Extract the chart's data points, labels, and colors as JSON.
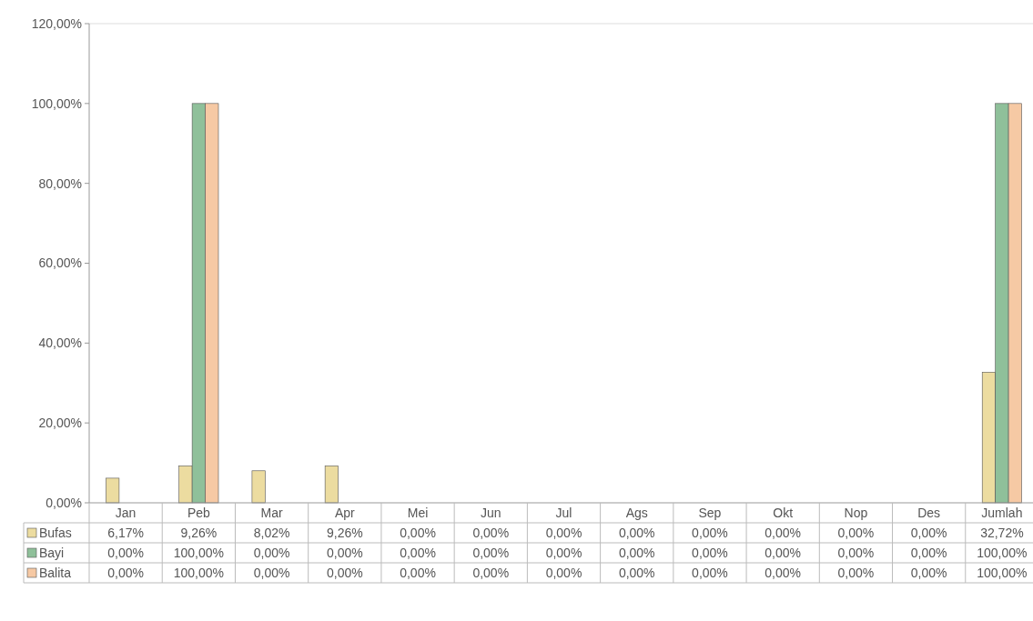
{
  "chart_data": {
    "type": "bar",
    "categories": [
      "Jan",
      "Peb",
      "Mar",
      "Apr",
      "Mei",
      "Jun",
      "Jul",
      "Ags",
      "Sep",
      "Okt",
      "Nop",
      "Des",
      "Jumlah"
    ],
    "series": [
      {
        "name": "Bufas",
        "color": "#ecdca0",
        "values": [
          6.17,
          9.26,
          8.02,
          9.26,
          0,
          0,
          0,
          0,
          0,
          0,
          0,
          0,
          32.72
        ],
        "value_labels": [
          "6,17%",
          "9,26%",
          "8,02%",
          "9,26%",
          "0,00%",
          "0,00%",
          "0,00%",
          "0,00%",
          "0,00%",
          "0,00%",
          "0,00%",
          "0,00%",
          "32,72%"
        ]
      },
      {
        "name": "Bayi",
        "color": "#8fc09a",
        "values": [
          0,
          100,
          0,
          0,
          0,
          0,
          0,
          0,
          0,
          0,
          0,
          0,
          100
        ],
        "value_labels": [
          "0,00%",
          "100,00%",
          "0,00%",
          "0,00%",
          "0,00%",
          "0,00%",
          "0,00%",
          "0,00%",
          "0,00%",
          "0,00%",
          "0,00%",
          "0,00%",
          "100,00%"
        ]
      },
      {
        "name": "Balita",
        "color": "#f6c9a4",
        "values": [
          0,
          100,
          0,
          0,
          0,
          0,
          0,
          0,
          0,
          0,
          0,
          0,
          100
        ],
        "value_labels": [
          "0,00%",
          "100,00%",
          "0,00%",
          "0,00%",
          "0,00%",
          "0,00%",
          "0,00%",
          "0,00%",
          "0,00%",
          "0,00%",
          "0,00%",
          "0,00%",
          "100,00%"
        ]
      }
    ],
    "ylim": [
      0,
      120
    ],
    "yticks": [
      {
        "value": 0,
        "label": "0,00%"
      },
      {
        "value": 20,
        "label": "20,00%"
      },
      {
        "value": 40,
        "label": "40,00%"
      },
      {
        "value": 60,
        "label": "60,00%"
      },
      {
        "value": 80,
        "label": "80,00%"
      },
      {
        "value": 100,
        "label": "100,00%"
      },
      {
        "value": 120,
        "label": "120,00%"
      }
    ],
    "legend": "bottom"
  }
}
